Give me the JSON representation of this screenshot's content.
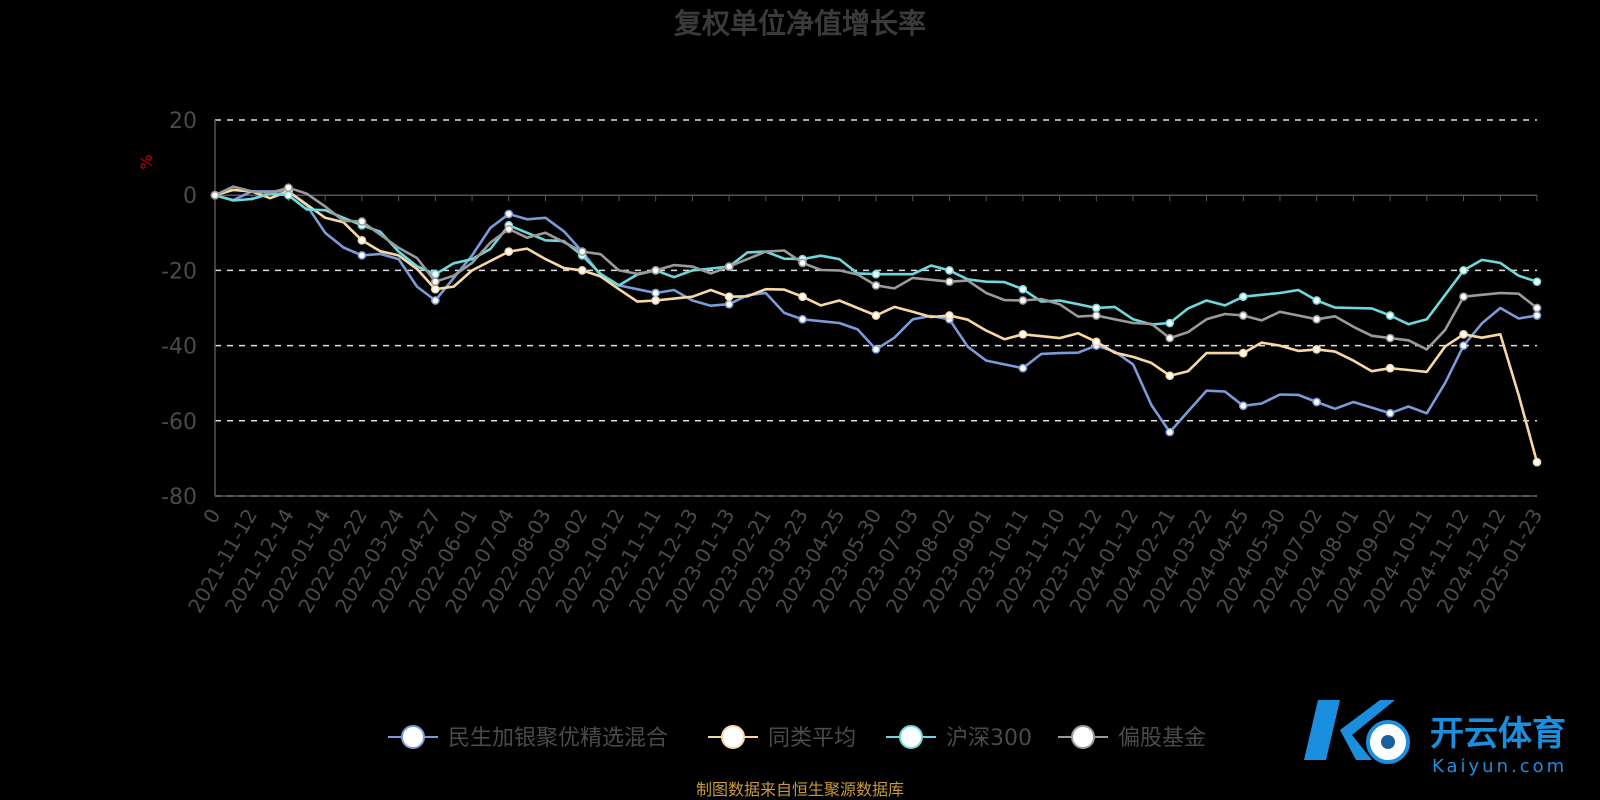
{
  "chart_data": {
    "type": "line",
    "title": "复权单位净值增长率",
    "ylabel": "%",
    "ylim": [
      -80,
      20
    ],
    "y_ticks": [
      20,
      0,
      -20,
      -40,
      -60,
      -80
    ],
    "grid": true,
    "legend_position": "bottom",
    "categories": [
      "0",
      "2021-11-12",
      "2021-12-14",
      "2022-01-14",
      "2022-02-22",
      "2022-03-24",
      "2022-04-27",
      "2022-06-01",
      "2022-07-04",
      "2022-08-03",
      "2022-09-02",
      "2022-10-12",
      "2022-11-11",
      "2022-12-13",
      "2023-01-13",
      "2023-02-21",
      "2023-03-23",
      "2023-04-25",
      "2023-05-30",
      "2023-07-03",
      "2023-08-02",
      "2023-09-01",
      "2023-10-11",
      "2023-11-10",
      "2023-12-12",
      "2024-01-12",
      "2024-02-21",
      "2024-03-22",
      "2024-04-25",
      "2024-05-30",
      "2024-07-02",
      "2024-08-01",
      "2024-09-02",
      "2024-10-11",
      "2024-11-12",
      "2024-12-12",
      "2025-01-23"
    ],
    "series": [
      {
        "name": "民生加银聚优精选混合",
        "color": "#7b9ad8",
        "values": [
          0,
          1,
          1,
          -10,
          -16,
          -17,
          -28,
          -16,
          -5,
          -6,
          -15,
          -24,
          -26,
          -28,
          -29,
          -26,
          -33,
          -34,
          -41,
          -33,
          -33,
          -44,
          -46,
          -42,
          -40,
          -45,
          -63,
          -52,
          -56,
          -53,
          -55,
          -55,
          -58,
          -58,
          -40,
          -30,
          -32
        ]
      },
      {
        "name": "同类平均",
        "color": "#f7d8a4",
        "values": [
          0,
          1,
          1,
          -6,
          -12,
          -16,
          -25,
          -20,
          -15,
          -17,
          -20,
          -25,
          -28,
          -27,
          -27,
          -25,
          -27,
          -28,
          -32,
          -31,
          -32,
          -36,
          -37,
          -38,
          -39,
          -43,
          -48,
          -42,
          -42,
          -40,
          -41,
          -44,
          -46,
          -47,
          -37,
          -37,
          -71
        ]
      },
      {
        "name": "沪深300",
        "color": "#6ed8dc",
        "values": [
          0,
          -1,
          0,
          -4,
          -8,
          -15,
          -21,
          -17,
          -8,
          -12,
          -16,
          -24,
          -20,
          -20,
          -19,
          -15,
          -17,
          -17,
          -21,
          -21,
          -20,
          -23,
          -25,
          -28,
          -30,
          -33,
          -34,
          -28,
          -27,
          -26,
          -28,
          -30,
          -32,
          -33,
          -20,
          -18,
          -23
        ]
      },
      {
        "name": "偏股基金",
        "color": "#9a9a9a",
        "values": [
          0,
          1,
          2,
          -3,
          -7,
          -14,
          -23,
          -18,
          -9,
          -10,
          -15,
          -20,
          -20,
          -19,
          -19,
          -15,
          -18,
          -20,
          -24,
          -22,
          -23,
          -26,
          -28,
          -29,
          -32,
          -34,
          -38,
          -33,
          -32,
          -31,
          -33,
          -35,
          -38,
          -41,
          -27,
          -26,
          -30
        ]
      }
    ]
  },
  "source_text": "制图数据来自恒生聚源数据库",
  "watermark": {
    "brand_cn": "开云体育",
    "brand_en": "Kaiyun.com"
  }
}
